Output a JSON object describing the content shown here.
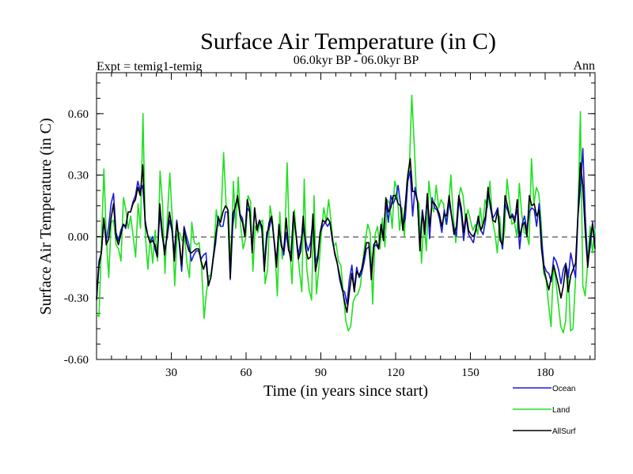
{
  "chart_data": {
    "type": "line",
    "title": "Surface Air Temperature (in C)",
    "subtitle": "06.0kyr BP - 06.0kyr BP",
    "top_left_label": "Expt = temig1-temig",
    "top_right_label": "Ann",
    "xlabel": "Time (in years since start)",
    "ylabel": "Surface Air Temperature (in C)",
    "xlim": [
      0,
      200
    ],
    "ylim": [
      -0.6,
      0.8
    ],
    "x_ticks": [
      30,
      60,
      90,
      120,
      150,
      180
    ],
    "y_ticks": [
      -0.6,
      -0.3,
      0.0,
      0.3,
      0.6
    ],
    "y_tick_labels": [
      "-0.60",
      "-0.30",
      "0.00",
      "0.30",
      "0.60"
    ],
    "zero_line": true,
    "legend_position": "bottom-right",
    "series": [
      {
        "name": "Ocean",
        "color": "#1a1adc",
        "values": [
          -0.3,
          -0.12,
          -0.08,
          0.08,
          -0.02,
          0.05,
          0.16,
          0.21,
          0.02,
          -0.02,
          0.03,
          0.06,
          0.04,
          0.12,
          0.12,
          0.17,
          0.2,
          0.27,
          0.22,
          0.25,
          0.08,
          0.01,
          -0.03,
          0.0,
          -0.06,
          -0.1,
          0.12,
          0.0,
          -0.06,
          -0.01,
          0.08,
          0.03,
          -0.08,
          0.08,
          -0.03,
          -0.17,
          0.05,
          0.0,
          -0.04,
          -0.12,
          -0.09,
          -0.07,
          -0.07,
          -0.11,
          -0.09,
          -0.08,
          -0.24,
          -0.2,
          -0.11,
          -0.03,
          0.1,
          0.05,
          0.05,
          0.12,
          0.12,
          -0.21,
          0.05,
          0.15,
          0.18,
          0.11,
          0.09,
          0.0,
          0.14,
          0.12,
          -0.06,
          0.14,
          0.04,
          0.08,
          0.03,
          -0.15,
          0.02,
          0.04,
          0.09,
          -0.01,
          -0.12,
          0.04,
          -0.03,
          -0.09,
          0.02,
          -0.07,
          -0.08,
          0.11,
          0.02,
          -0.09,
          -0.03,
          0.04,
          -0.02,
          -0.07,
          -0.03,
          0.08,
          -0.13,
          -0.09,
          0.02,
          0.05,
          0.07,
          0.05,
          0.07,
          -0.01,
          -0.09,
          -0.13,
          -0.21,
          -0.26,
          -0.27,
          -0.33,
          -0.21,
          -0.14,
          -0.26,
          -0.15,
          -0.2,
          -0.18,
          -0.13,
          -0.06,
          -0.05,
          -0.17,
          -0.05,
          -0.04,
          -0.06,
          0.06,
          0.0,
          0.17,
          0.07,
          0.2,
          0.16,
          0.19,
          0.25,
          0.16,
          0.05,
          0.09,
          0.27,
          0.32,
          0.1,
          0.24,
          0.17,
          -0.05,
          0.13,
          0.04,
          0.19,
          -0.01,
          0.19,
          0.14,
          0.13,
          0.09,
          0.02,
          0.13,
          0.06,
          0.17,
          0.1,
          0.04,
          0.0,
          0.18,
          0.11,
          -0.02,
          0.1,
          0.01,
          -0.01,
          -0.03,
          0.04,
          0.08,
          0.03,
          0.01,
          0.08,
          0.21,
          0.16,
          0.09,
          0.11,
          0.14,
          0.0,
          -0.06,
          0.16,
          0.13,
          0.09,
          0.11,
          0.09,
          0.13,
          -0.06,
          0.06,
          0.1,
          0.03,
          0.12,
          0.14,
          0.13,
          0.05,
          0.16,
          -0.01,
          -0.14,
          -0.17,
          -0.18,
          -0.22,
          -0.1,
          -0.12,
          -0.16,
          -0.23,
          -0.16,
          -0.13,
          -0.2,
          -0.08,
          -0.14,
          -0.2,
          0.1,
          0.24,
          0.43,
          0.1,
          -0.13,
          -0.05,
          0.07,
          -0.05
        ]
      },
      {
        "name": "Land",
        "color": "#22e022",
        "values": [
          -0.38,
          -0.39,
          -0.03,
          0.33,
          -0.01,
          -0.2,
          0.07,
          0.08,
          -0.04,
          -0.06,
          -0.12,
          0.19,
          0.13,
          0.04,
          0.1,
          0.0,
          -0.1,
          0.16,
          0.04,
          0.6,
          0.0,
          -0.16,
          0.0,
          -0.13,
          0.03,
          -0.12,
          0.32,
          0.16,
          -0.18,
          0.1,
          0.31,
          0.09,
          -0.24,
          0.01,
          0.02,
          -0.02,
          0.0,
          -0.13,
          -0.2,
          0.07,
          -0.03,
          -0.04,
          -0.03,
          -0.15,
          -0.4,
          -0.27,
          -0.19,
          -0.19,
          -0.09,
          0.13,
          0.05,
          0.11,
          0.41,
          0.16,
          0.12,
          -0.15,
          0.27,
          0.04,
          0.29,
          0.05,
          -0.06,
          -0.01,
          0.2,
          0.17,
          -0.17,
          0.05,
          0.02,
          0.07,
          0.08,
          -0.23,
          -0.16,
          0.15,
          0.08,
          -0.06,
          -0.29,
          0.12,
          -0.11,
          -0.02,
          0.36,
          -0.05,
          -0.23,
          0.13,
          -0.04,
          -0.16,
          -0.27,
          0.28,
          -0.15,
          -0.26,
          -0.31,
          0.2,
          -0.28,
          -0.15,
          0.01,
          0.14,
          0.07,
          0.18,
          0.07,
          -0.05,
          -0.03,
          -0.12,
          -0.14,
          -0.28,
          -0.41,
          -0.46,
          -0.44,
          -0.32,
          -0.29,
          -0.28,
          -0.24,
          -0.12,
          -0.02,
          0.06,
          0.02,
          -0.33,
          0.01,
          0.05,
          -0.06,
          0.09,
          -0.05,
          0.18,
          0.16,
          0.04,
          0.27,
          0.23,
          0.03,
          0.14,
          0.0,
          0.27,
          0.33,
          0.69,
          0.45,
          0.18,
          0.16,
          -0.13,
          0.08,
          -0.07,
          0.27,
          0.16,
          0.12,
          0.25,
          0.14,
          0.18,
          0.16,
          0.06,
          0.13,
          0.3,
          0.1,
          -0.03,
          0.17,
          0.24,
          0.2,
          0.08,
          0.13,
          0.08,
          0.03,
          0.06,
          0.01,
          0.14,
          0.04,
          0.18,
          0.14,
          0.27,
          0.08,
          0.02,
          -0.08,
          0.1,
          -0.06,
          0.03,
          0.28,
          0.17,
          0.06,
          0.07,
          0.0,
          0.26,
          0.11,
          0.02,
          0.01,
          -0.04,
          0.38,
          0.16,
          0.24,
          0.21,
          0.06,
          -0.18,
          -0.21,
          -0.33,
          -0.44,
          -0.14,
          -0.22,
          -0.33,
          -0.44,
          -0.47,
          -0.41,
          -0.16,
          -0.46,
          -0.45,
          -0.21,
          0.11,
          0.61,
          -0.24,
          -0.29,
          -0.13,
          0.05,
          -0.08,
          0.04
        ]
      },
      {
        "name": "AllSurf",
        "color": "#000000",
        "values": [
          -0.31,
          -0.14,
          -0.08,
          0.09,
          -0.04,
          -0.01,
          0.09,
          0.16,
          0.0,
          -0.04,
          0.01,
          0.06,
          0.05,
          0.12,
          0.12,
          0.16,
          0.18,
          0.24,
          0.2,
          0.35,
          0.06,
          0.01,
          -0.03,
          -0.02,
          -0.04,
          -0.1,
          0.16,
          0.02,
          -0.09,
          0.01,
          0.12,
          0.04,
          -0.12,
          0.07,
          -0.02,
          -0.14,
          0.04,
          -0.03,
          -0.07,
          -0.08,
          -0.07,
          -0.06,
          -0.06,
          -0.12,
          -0.16,
          -0.12,
          -0.24,
          -0.2,
          -0.1,
          0.0,
          0.09,
          0.07,
          0.12,
          0.15,
          0.13,
          -0.2,
          0.11,
          0.14,
          0.2,
          0.1,
          0.07,
          0.0,
          0.18,
          0.13,
          -0.08,
          0.14,
          0.03,
          0.08,
          0.05,
          -0.17,
          -0.01,
          0.07,
          0.1,
          -0.02,
          -0.15,
          0.06,
          -0.05,
          -0.07,
          0.09,
          -0.06,
          -0.12,
          0.12,
          0.01,
          -0.11,
          -0.07,
          0.1,
          -0.06,
          -0.11,
          -0.1,
          0.11,
          -0.17,
          -0.11,
          0.02,
          0.08,
          0.07,
          0.09,
          0.07,
          -0.02,
          -0.08,
          -0.13,
          -0.19,
          -0.25,
          -0.32,
          -0.37,
          -0.27,
          -0.18,
          -0.27,
          -0.17,
          -0.19,
          -0.16,
          -0.1,
          -0.03,
          -0.03,
          -0.21,
          -0.04,
          -0.02,
          -0.06,
          0.06,
          -0.02,
          0.19,
          0.12,
          0.14,
          0.2,
          0.2,
          0.16,
          0.15,
          0.03,
          0.16,
          0.3,
          0.38,
          0.22,
          0.22,
          0.17,
          -0.07,
          0.12,
          0.01,
          0.21,
          0.05,
          0.17,
          0.16,
          0.14,
          0.11,
          0.05,
          0.11,
          0.1,
          0.2,
          0.1,
          0.01,
          0.05,
          0.2,
          0.14,
          0.02,
          0.11,
          0.03,
          0.01,
          0.0,
          0.03,
          0.1,
          0.03,
          0.06,
          0.1,
          0.24,
          0.14,
          0.08,
          0.07,
          0.13,
          -0.02,
          -0.04,
          0.2,
          0.15,
          0.09,
          0.1,
          0.07,
          0.18,
          0.0,
          0.05,
          0.07,
          0.0,
          0.2,
          0.15,
          0.16,
          0.1,
          0.13,
          -0.06,
          -0.16,
          -0.21,
          -0.26,
          -0.2,
          -0.14,
          -0.19,
          -0.24,
          -0.3,
          -0.24,
          -0.14,
          -0.27,
          -0.19,
          -0.16,
          -0.13,
          0.11,
          0.36,
          0.25,
          0.02,
          -0.15,
          -0.01,
          0.06,
          -0.06
        ]
      }
    ]
  }
}
